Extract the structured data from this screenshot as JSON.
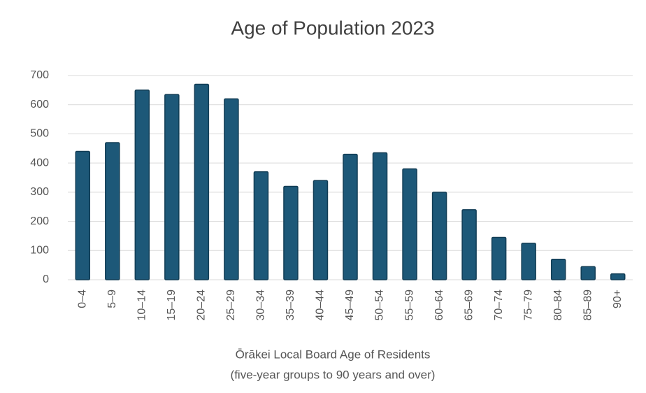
{
  "chart_data": {
    "type": "bar",
    "title": "Age of Population 2023",
    "x_label": [
      "Ōrākei Local Board Age of Residents",
      "(five-year groups to 90 years and over)"
    ],
    "categories": [
      "0–4",
      "5–9",
      "10–14",
      "15–19",
      "20–24",
      "25–29",
      "30–34",
      "35–39",
      "40–44",
      "45–49",
      "50–54",
      "55–59",
      "60–64",
      "65–69",
      "70–74",
      "75–79",
      "80–84",
      "85–89",
      "90+"
    ],
    "values": [
      440,
      470,
      650,
      635,
      670,
      620,
      370,
      320,
      340,
      430,
      435,
      380,
      300,
      240,
      145,
      125,
      70,
      45,
      20
    ],
    "color": "#1d5878",
    "ylim": [
      0,
      700
    ],
    "yticks": [
      0,
      100,
      200,
      300,
      400,
      500,
      600,
      700
    ],
    "grid": true
  }
}
